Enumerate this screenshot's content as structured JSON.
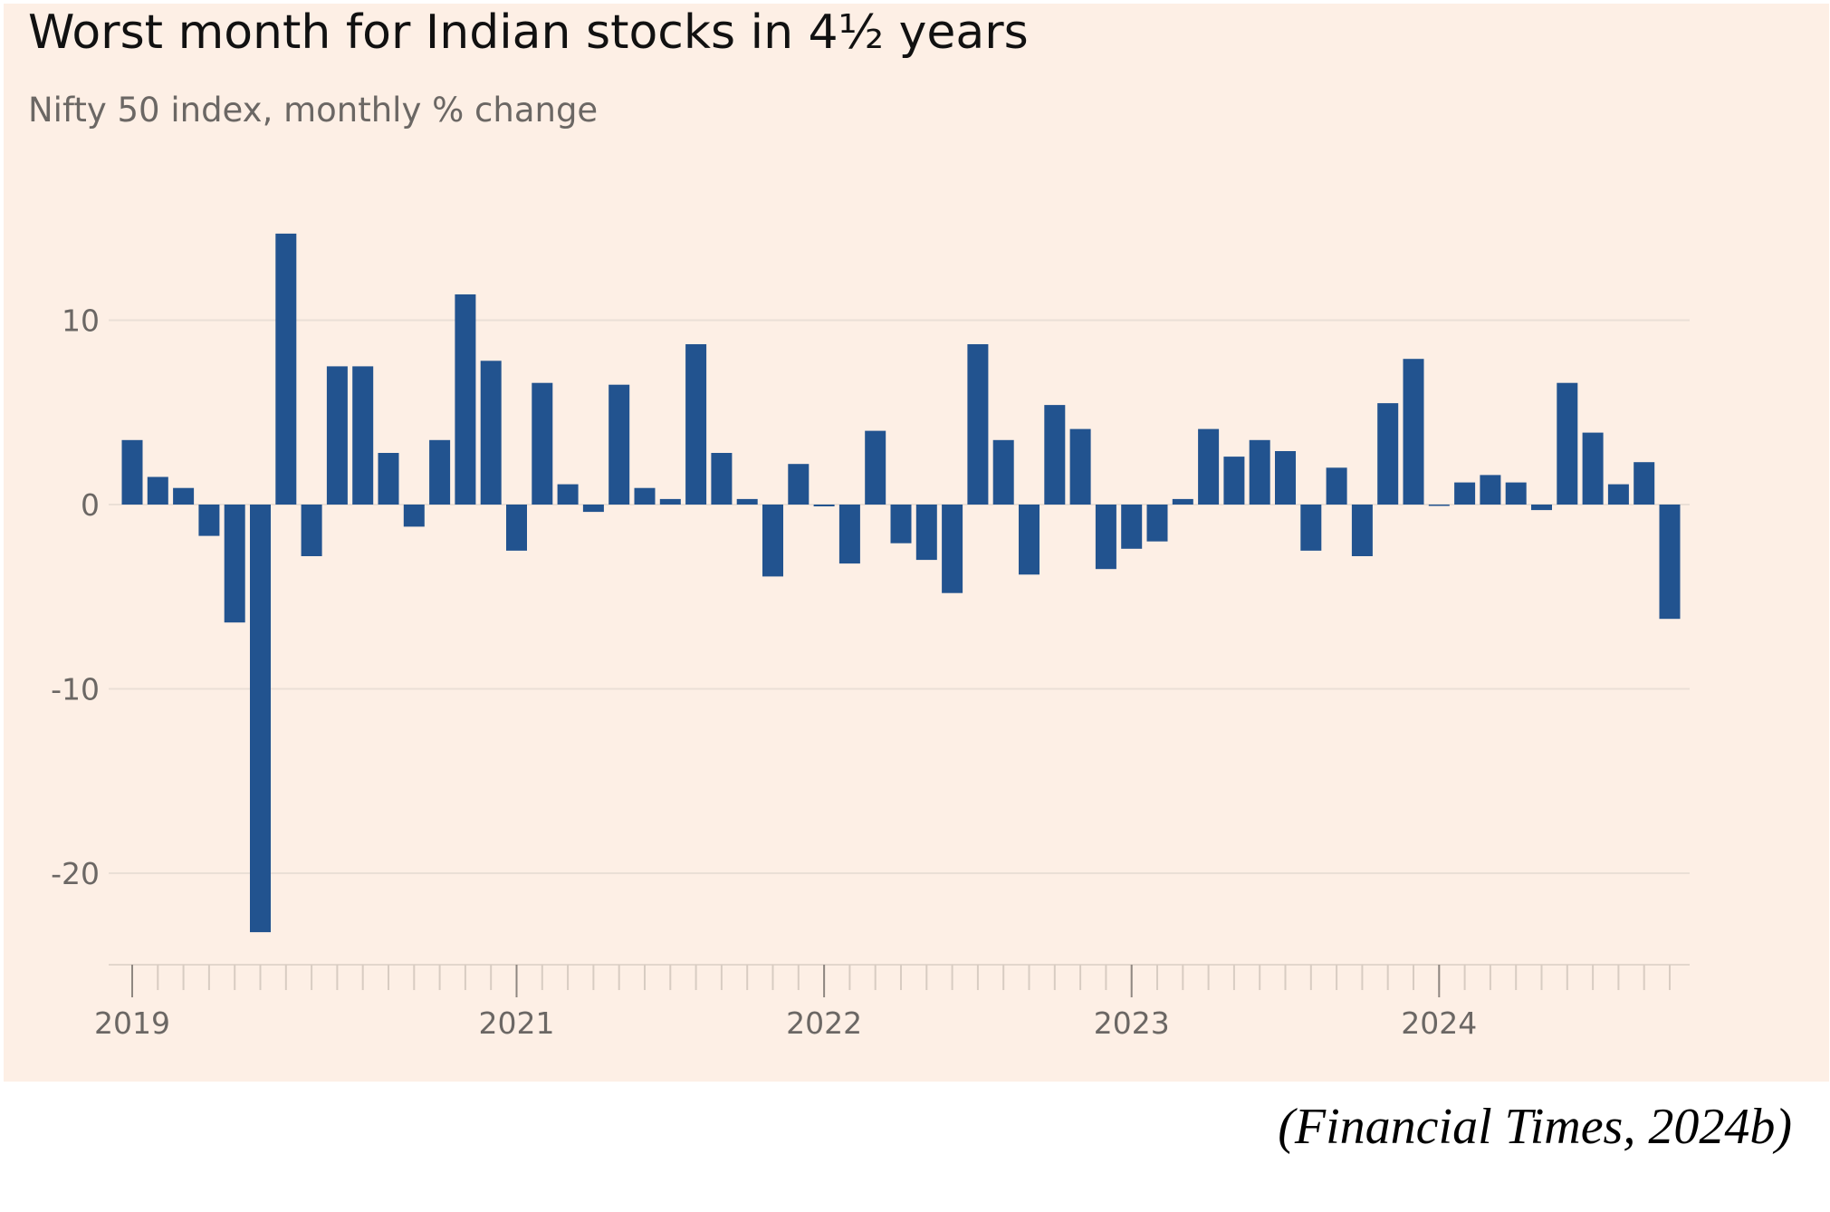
{
  "chart_data": {
    "type": "bar",
    "title": "Worst month for Indian stocks in 4½ years",
    "subtitle": "Nifty 50 index, monthly % change",
    "xlabel": "",
    "ylabel": "",
    "ylim": [
      -25,
      15
    ],
    "yticks": [
      10,
      0,
      -10,
      -20
    ],
    "ytick_labels": [
      "10",
      "0",
      "-10",
      "-20"
    ],
    "xtick_labels": [
      {
        "label": "2019",
        "month_index": 0
      },
      {
        "label": "2021",
        "month_index": 15
      },
      {
        "label": "2022",
        "month_index": 27
      },
      {
        "label": "2023",
        "month_index": 39
      },
      {
        "label": "2024",
        "month_index": 51
      }
    ],
    "grid": true,
    "bar_color": "#22538f",
    "background_color": "#fdefe5",
    "series": [
      {
        "values": [
          3.5,
          1.5,
          0.9,
          -1.7,
          -6.4,
          -23.2,
          14.7,
          -2.8,
          7.5,
          7.5,
          2.8,
          -1.2,
          3.5,
          11.4,
          7.8,
          -2.5,
          6.6,
          1.1,
          -0.4,
          6.5,
          0.9,
          0.3,
          8.7,
          2.8,
          0.3,
          -3.9,
          2.2,
          -0.1,
          -3.2,
          4.0,
          -2.1,
          -3.0,
          -4.8,
          8.7,
          3.5,
          -3.8,
          5.4,
          4.1,
          -3.5,
          -2.4,
          -2.0,
          0.3,
          4.1,
          2.6,
          3.5,
          2.9,
          -2.5,
          2.0,
          -2.8,
          5.5,
          7.9,
          0.0,
          1.2,
          1.6,
          1.2,
          -0.3,
          6.6,
          3.9,
          1.1,
          2.3,
          -6.2
        ]
      }
    ]
  },
  "source_note": "(Financial Times, 2024b)"
}
